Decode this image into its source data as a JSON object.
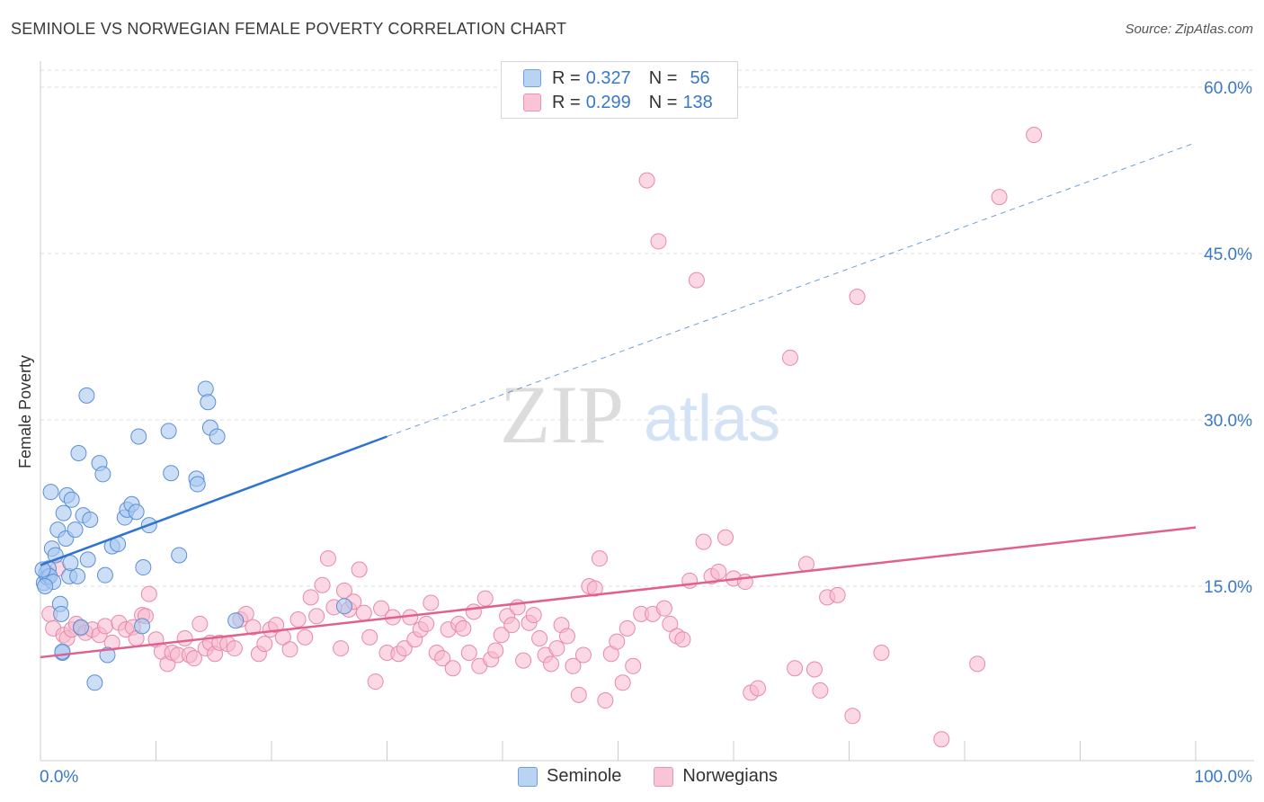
{
  "title": "SEMINOLE VS NORWEGIAN FEMALE POVERTY CORRELATION CHART",
  "source": "Source: ZipAtlas.com",
  "watermark": {
    "zip": "ZIP",
    "atlas": "atlas"
  },
  "legend": {
    "rows": [
      {
        "r_label": "R =",
        "r_value": "0.327",
        "n_label": "N =",
        "n_value": "56"
      },
      {
        "r_label": "R =",
        "r_value": "0.299",
        "n_label": "N =",
        "n_value": "138"
      }
    ]
  },
  "colors": {
    "seminole_fill": "#a8c8f0",
    "seminole_stroke": "#5b8fd6",
    "seminole_line": "#2f74d0",
    "norwegian_fill": "#f7b8cc",
    "norwegian_stroke": "#e889a9",
    "norwegian_line": "#e0608e",
    "grid": "#dddddd",
    "axis_text": "#3a78c8"
  },
  "chart_data": {
    "type": "scatter",
    "ylabel": "Female Poverty",
    "xlabel": "",
    "xlim": [
      0,
      100
    ],
    "ylim": [
      0,
      65
    ],
    "x_tick_labels": [
      "0.0%",
      "100.0%"
    ],
    "y_ticks": [
      15,
      30,
      45,
      60
    ],
    "y_tick_labels": [
      "15.0%",
      "30.0%",
      "45.0%",
      "60.0%"
    ],
    "grid": true,
    "series": [
      {
        "name": "Seminole",
        "trend": {
          "x": [
            0,
            30
          ],
          "y": [
            16.9,
            28.5
          ],
          "extended_to": [
            100,
            55.0
          ]
        },
        "points": [
          [
            0.3,
            15.3
          ],
          [
            0.5,
            16.2
          ],
          [
            0.6,
            15.8
          ],
          [
            0.7,
            16.6
          ],
          [
            0.8,
            15.9
          ],
          [
            0.9,
            23.5
          ],
          [
            1.0,
            18.4
          ],
          [
            1.1,
            15.4
          ],
          [
            1.3,
            17.8
          ],
          [
            1.5,
            20.1
          ],
          [
            1.7,
            13.4
          ],
          [
            1.8,
            12.5
          ],
          [
            1.9,
            9.0
          ],
          [
            2.0,
            21.6
          ],
          [
            2.2,
            19.3
          ],
          [
            2.3,
            23.2
          ],
          [
            2.5,
            15.9
          ],
          [
            2.6,
            17.1
          ],
          [
            2.7,
            22.8
          ],
          [
            3.0,
            20.1
          ],
          [
            3.2,
            15.9
          ],
          [
            3.3,
            27.0
          ],
          [
            3.5,
            11.3
          ],
          [
            3.7,
            21.4
          ],
          [
            4.0,
            32.2
          ],
          [
            4.1,
            17.4
          ],
          [
            4.3,
            21.0
          ],
          [
            4.7,
            6.3
          ],
          [
            5.1,
            26.1
          ],
          [
            5.4,
            25.1
          ],
          [
            5.6,
            16.0
          ],
          [
            5.8,
            8.8
          ],
          [
            6.2,
            18.6
          ],
          [
            6.7,
            18.8
          ],
          [
            7.3,
            21.2
          ],
          [
            7.5,
            21.9
          ],
          [
            7.9,
            22.4
          ],
          [
            8.3,
            21.7
          ],
          [
            8.5,
            28.5
          ],
          [
            8.8,
            11.4
          ],
          [
            8.9,
            16.7
          ],
          [
            9.4,
            20.5
          ],
          [
            11.1,
            29.0
          ],
          [
            11.3,
            25.2
          ],
          [
            12.0,
            17.8
          ],
          [
            13.5,
            24.7
          ],
          [
            13.6,
            24.2
          ],
          [
            14.3,
            32.8
          ],
          [
            14.5,
            31.6
          ],
          [
            14.7,
            29.3
          ],
          [
            15.3,
            28.5
          ],
          [
            16.9,
            11.9
          ],
          [
            26.3,
            13.2
          ],
          [
            1.9,
            9.1
          ],
          [
            0.2,
            16.5
          ],
          [
            0.4,
            15.0
          ]
        ]
      },
      {
        "name": "Norwegians",
        "trend": {
          "x": [
            0,
            100
          ],
          "y": [
            8.6,
            20.3
          ]
        },
        "points": [
          [
            0.8,
            12.5
          ],
          [
            1.1,
            11.2
          ],
          [
            1.5,
            16.6
          ],
          [
            2.0,
            10.6
          ],
          [
            2.3,
            10.3
          ],
          [
            2.7,
            11.1
          ],
          [
            3.1,
            11.6
          ],
          [
            3.5,
            11.2
          ],
          [
            3.9,
            10.8
          ],
          [
            4.5,
            11.1
          ],
          [
            5.1,
            10.6
          ],
          [
            5.6,
            11.4
          ],
          [
            6.2,
            9.9
          ],
          [
            6.8,
            11.7
          ],
          [
            7.4,
            11.1
          ],
          [
            8.0,
            11.3
          ],
          [
            8.3,
            10.3
          ],
          [
            8.8,
            12.4
          ],
          [
            9.1,
            12.3
          ],
          [
            9.4,
            14.3
          ],
          [
            10.0,
            10.2
          ],
          [
            10.5,
            9.1
          ],
          [
            11.0,
            8.0
          ],
          [
            11.4,
            9.0
          ],
          [
            11.9,
            8.8
          ],
          [
            12.5,
            10.3
          ],
          [
            12.9,
            8.8
          ],
          [
            13.3,
            8.5
          ],
          [
            13.8,
            11.6
          ],
          [
            14.3,
            9.4
          ],
          [
            14.7,
            9.9
          ],
          [
            15.1,
            8.9
          ],
          [
            15.5,
            9.9
          ],
          [
            16.2,
            9.8
          ],
          [
            16.8,
            9.4
          ],
          [
            17.3,
            12.0
          ],
          [
            17.8,
            12.5
          ],
          [
            18.4,
            11.3
          ],
          [
            18.9,
            8.9
          ],
          [
            19.4,
            9.8
          ],
          [
            19.9,
            11.1
          ],
          [
            20.4,
            11.5
          ],
          [
            21.0,
            10.4
          ],
          [
            21.6,
            9.3
          ],
          [
            22.3,
            12.0
          ],
          [
            22.9,
            10.4
          ],
          [
            23.4,
            14.0
          ],
          [
            23.9,
            12.3
          ],
          [
            24.4,
            15.1
          ],
          [
            24.9,
            17.5
          ],
          [
            25.4,
            13.1
          ],
          [
            26.0,
            9.4
          ],
          [
            26.3,
            14.6
          ],
          [
            26.7,
            12.9
          ],
          [
            27.1,
            13.6
          ],
          [
            27.6,
            16.5
          ],
          [
            28.0,
            12.6
          ],
          [
            28.5,
            10.4
          ],
          [
            29.0,
            6.4
          ],
          [
            29.5,
            13.0
          ],
          [
            30.0,
            9.0
          ],
          [
            30.5,
            12.2
          ],
          [
            31.0,
            8.9
          ],
          [
            31.5,
            9.4
          ],
          [
            32.0,
            12.2
          ],
          [
            32.4,
            10.2
          ],
          [
            32.9,
            11.1
          ],
          [
            33.4,
            11.6
          ],
          [
            33.8,
            13.5
          ],
          [
            34.3,
            9.0
          ],
          [
            34.8,
            8.5
          ],
          [
            35.3,
            11.1
          ],
          [
            35.7,
            7.6
          ],
          [
            36.2,
            11.6
          ],
          [
            36.6,
            11.2
          ],
          [
            37.1,
            9.0
          ],
          [
            37.5,
            12.7
          ],
          [
            38.0,
            7.8
          ],
          [
            38.5,
            13.9
          ],
          [
            39.0,
            8.4
          ],
          [
            39.4,
            9.2
          ],
          [
            39.9,
            10.6
          ],
          [
            40.4,
            12.3
          ],
          [
            40.8,
            11.5
          ],
          [
            41.3,
            13.1
          ],
          [
            41.8,
            8.3
          ],
          [
            42.3,
            11.7
          ],
          [
            42.7,
            12.4
          ],
          [
            43.2,
            10.3
          ],
          [
            43.7,
            8.8
          ],
          [
            44.2,
            8.0
          ],
          [
            44.7,
            9.4
          ],
          [
            45.1,
            11.5
          ],
          [
            45.6,
            10.5
          ],
          [
            46.1,
            7.8
          ],
          [
            46.6,
            5.2
          ],
          [
            47.0,
            8.8
          ],
          [
            47.5,
            15.0
          ],
          [
            48.0,
            14.8
          ],
          [
            48.4,
            17.5
          ],
          [
            48.9,
            4.7
          ],
          [
            49.4,
            8.9
          ],
          [
            49.9,
            10.0
          ],
          [
            50.4,
            6.3
          ],
          [
            50.8,
            11.2
          ],
          [
            51.3,
            7.8
          ],
          [
            52.0,
            12.5
          ],
          [
            52.5,
            51.6
          ],
          [
            53.0,
            12.5
          ],
          [
            53.5,
            46.1
          ],
          [
            54.0,
            13.0
          ],
          [
            54.5,
            11.6
          ],
          [
            55.1,
            10.5
          ],
          [
            55.6,
            10.2
          ],
          [
            56.2,
            15.5
          ],
          [
            56.8,
            42.6
          ],
          [
            57.4,
            19.0
          ],
          [
            58.1,
            15.9
          ],
          [
            58.7,
            16.3
          ],
          [
            59.3,
            19.4
          ],
          [
            60.0,
            15.7
          ],
          [
            61.0,
            15.4
          ],
          [
            61.5,
            5.4
          ],
          [
            62.1,
            5.8
          ],
          [
            64.9,
            35.6
          ],
          [
            65.3,
            7.6
          ],
          [
            66.3,
            17.0
          ],
          [
            67.0,
            7.5
          ],
          [
            68.1,
            14.0
          ],
          [
            69.0,
            14.2
          ],
          [
            70.3,
            3.3
          ],
          [
            70.7,
            41.1
          ],
          [
            72.8,
            9.0
          ],
          [
            78.0,
            1.2
          ],
          [
            81.1,
            8.0
          ],
          [
            83.0,
            50.1
          ],
          [
            86.0,
            55.7
          ],
          [
            67.5,
            5.6
          ]
        ]
      }
    ]
  }
}
